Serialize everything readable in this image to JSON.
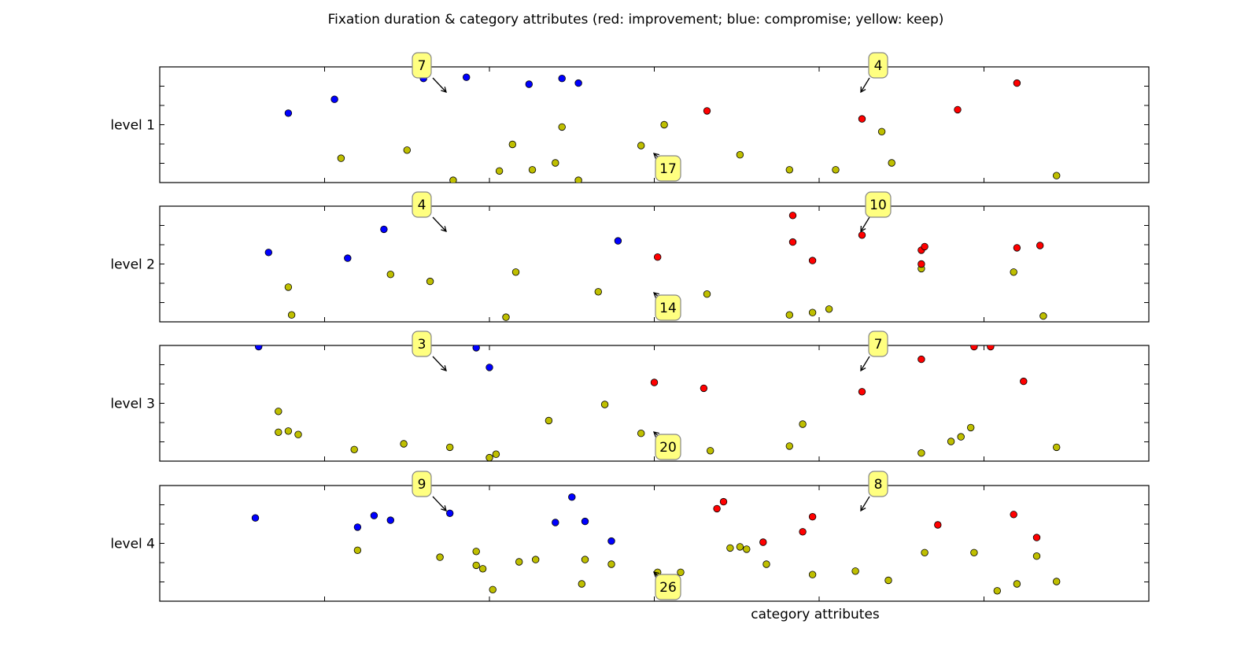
{
  "chart_data": {
    "type": "scatter",
    "title": "Fixation duration & category attributes (red: improvement; blue: compromise; yellow: keep)",
    "xlabel": "category attributes",
    "xlim": [
      0,
      30
    ],
    "ylim": [
      0,
      1
    ],
    "grid": false,
    "colors": {
      "improvement": "#ff0000",
      "compromise": "#0000ff",
      "keep": "#bfbf00"
    },
    "panels": [
      {
        "label": "level 1",
        "annotations": {
          "compromise": "7",
          "improvement": "4",
          "keep": "17"
        },
        "points": {
          "compromise": [
            [
              3.9,
              0.6
            ],
            [
              5.3,
              0.72
            ],
            [
              8.0,
              0.9
            ],
            [
              9.3,
              0.91
            ],
            [
              11.2,
              0.85
            ],
            [
              12.2,
              0.9
            ],
            [
              12.7,
              0.86
            ]
          ],
          "improvement": [
            [
              16.6,
              0.62
            ],
            [
              21.3,
              0.55
            ],
            [
              24.2,
              0.63
            ],
            [
              26.0,
              0.86
            ]
          ],
          "keep": [
            [
              5.5,
              0.21
            ],
            [
              7.5,
              0.28
            ],
            [
              8.9,
              0.02
            ],
            [
              10.3,
              0.1
            ],
            [
              10.7,
              0.33
            ],
            [
              11.3,
              0.11
            ],
            [
              12.0,
              0.17
            ],
            [
              12.2,
              0.48
            ],
            [
              12.7,
              0.02
            ],
            [
              14.6,
              0.32
            ],
            [
              15.3,
              0.5
            ],
            [
              17.6,
              0.24
            ],
            [
              19.1,
              0.11
            ],
            [
              20.5,
              0.11
            ],
            [
              21.9,
              0.44
            ],
            [
              22.2,
              0.17
            ],
            [
              27.2,
              0.06
            ]
          ]
        }
      },
      {
        "label": "level 2",
        "annotations": {
          "compromise": "4",
          "improvement": "10",
          "keep": "14"
        },
        "points": {
          "compromise": [
            [
              3.3,
              0.6
            ],
            [
              5.7,
              0.55
            ],
            [
              6.8,
              0.8
            ],
            [
              13.9,
              0.7
            ]
          ],
          "improvement": [
            [
              15.1,
              0.56
            ],
            [
              19.2,
              0.92
            ],
            [
              19.2,
              0.69
            ],
            [
              19.8,
              0.53
            ],
            [
              21.3,
              0.75
            ],
            [
              23.1,
              0.62
            ],
            [
              23.2,
              0.65
            ],
            [
              23.1,
              0.5
            ],
            [
              26.0,
              0.64
            ],
            [
              26.7,
              0.66
            ]
          ],
          "keep": [
            [
              3.9,
              0.3
            ],
            [
              4.0,
              0.06
            ],
            [
              7.0,
              0.41
            ],
            [
              8.2,
              0.35
            ],
            [
              10.5,
              0.04
            ],
            [
              10.8,
              0.43
            ],
            [
              13.3,
              0.26
            ],
            [
              16.6,
              0.24
            ],
            [
              19.1,
              0.06
            ],
            [
              19.8,
              0.08
            ],
            [
              20.3,
              0.11
            ],
            [
              23.1,
              0.46
            ],
            [
              25.9,
              0.43
            ],
            [
              26.8,
              0.05
            ]
          ]
        }
      },
      {
        "label": "level 3",
        "annotations": {
          "compromise": "3",
          "improvement": "7",
          "keep": "20"
        },
        "points": {
          "compromise": [
            [
              3.0,
              0.99
            ],
            [
              9.6,
              0.98
            ],
            [
              10.0,
              0.81
            ]
          ],
          "improvement": [
            [
              15.0,
              0.68
            ],
            [
              16.5,
              0.63
            ],
            [
              21.3,
              0.6
            ],
            [
              23.1,
              0.88
            ],
            [
              24.7,
              0.99
            ],
            [
              25.2,
              0.99
            ],
            [
              26.2,
              0.69
            ]
          ],
          "keep": [
            [
              3.6,
              0.43
            ],
            [
              3.6,
              0.25
            ],
            [
              3.9,
              0.26
            ],
            [
              4.2,
              0.23
            ],
            [
              5.9,
              0.1
            ],
            [
              7.4,
              0.15
            ],
            [
              8.8,
              0.12
            ],
            [
              10.0,
              0.03
            ],
            [
              10.2,
              0.06
            ],
            [
              11.8,
              0.35
            ],
            [
              13.5,
              0.49
            ],
            [
              14.6,
              0.24
            ],
            [
              16.7,
              0.09
            ],
            [
              19.1,
              0.13
            ],
            [
              19.5,
              0.32
            ],
            [
              23.1,
              0.07
            ],
            [
              24.0,
              0.17
            ],
            [
              24.3,
              0.21
            ],
            [
              24.6,
              0.29
            ],
            [
              27.2,
              0.12
            ]
          ]
        }
      },
      {
        "label": "level 4",
        "annotations": {
          "compromise": "9",
          "improvement": "8",
          "keep": "26"
        },
        "points": {
          "compromise": [
            [
              2.9,
              0.72
            ],
            [
              6.0,
              0.64
            ],
            [
              6.5,
              0.74
            ],
            [
              7.0,
              0.7
            ],
            [
              8.8,
              0.76
            ],
            [
              12.0,
              0.68
            ],
            [
              12.5,
              0.9
            ],
            [
              12.9,
              0.69
            ],
            [
              13.7,
              0.52
            ]
          ],
          "improvement": [
            [
              16.9,
              0.8
            ],
            [
              17.1,
              0.86
            ],
            [
              18.3,
              0.51
            ],
            [
              19.5,
              0.6
            ],
            [
              19.8,
              0.73
            ],
            [
              23.6,
              0.66
            ],
            [
              25.9,
              0.75
            ],
            [
              26.6,
              0.55
            ]
          ],
          "keep": [
            [
              6.0,
              0.44
            ],
            [
              8.5,
              0.38
            ],
            [
              9.6,
              0.43
            ],
            [
              9.6,
              0.31
            ],
            [
              9.8,
              0.28
            ],
            [
              10.1,
              0.1
            ],
            [
              10.9,
              0.34
            ],
            [
              11.4,
              0.36
            ],
            [
              12.8,
              0.15
            ],
            [
              12.9,
              0.36
            ],
            [
              13.7,
              0.32
            ],
            [
              15.1,
              0.25
            ],
            [
              15.8,
              0.25
            ],
            [
              17.3,
              0.46
            ],
            [
              17.6,
              0.47
            ],
            [
              17.8,
              0.45
            ],
            [
              18.4,
              0.32
            ],
            [
              19.8,
              0.23
            ],
            [
              21.1,
              0.26
            ],
            [
              22.1,
              0.18
            ],
            [
              23.2,
              0.42
            ],
            [
              24.7,
              0.42
            ],
            [
              25.4,
              0.09
            ],
            [
              26.0,
              0.15
            ],
            [
              26.6,
              0.39
            ],
            [
              27.2,
              0.17
            ]
          ]
        }
      }
    ]
  }
}
